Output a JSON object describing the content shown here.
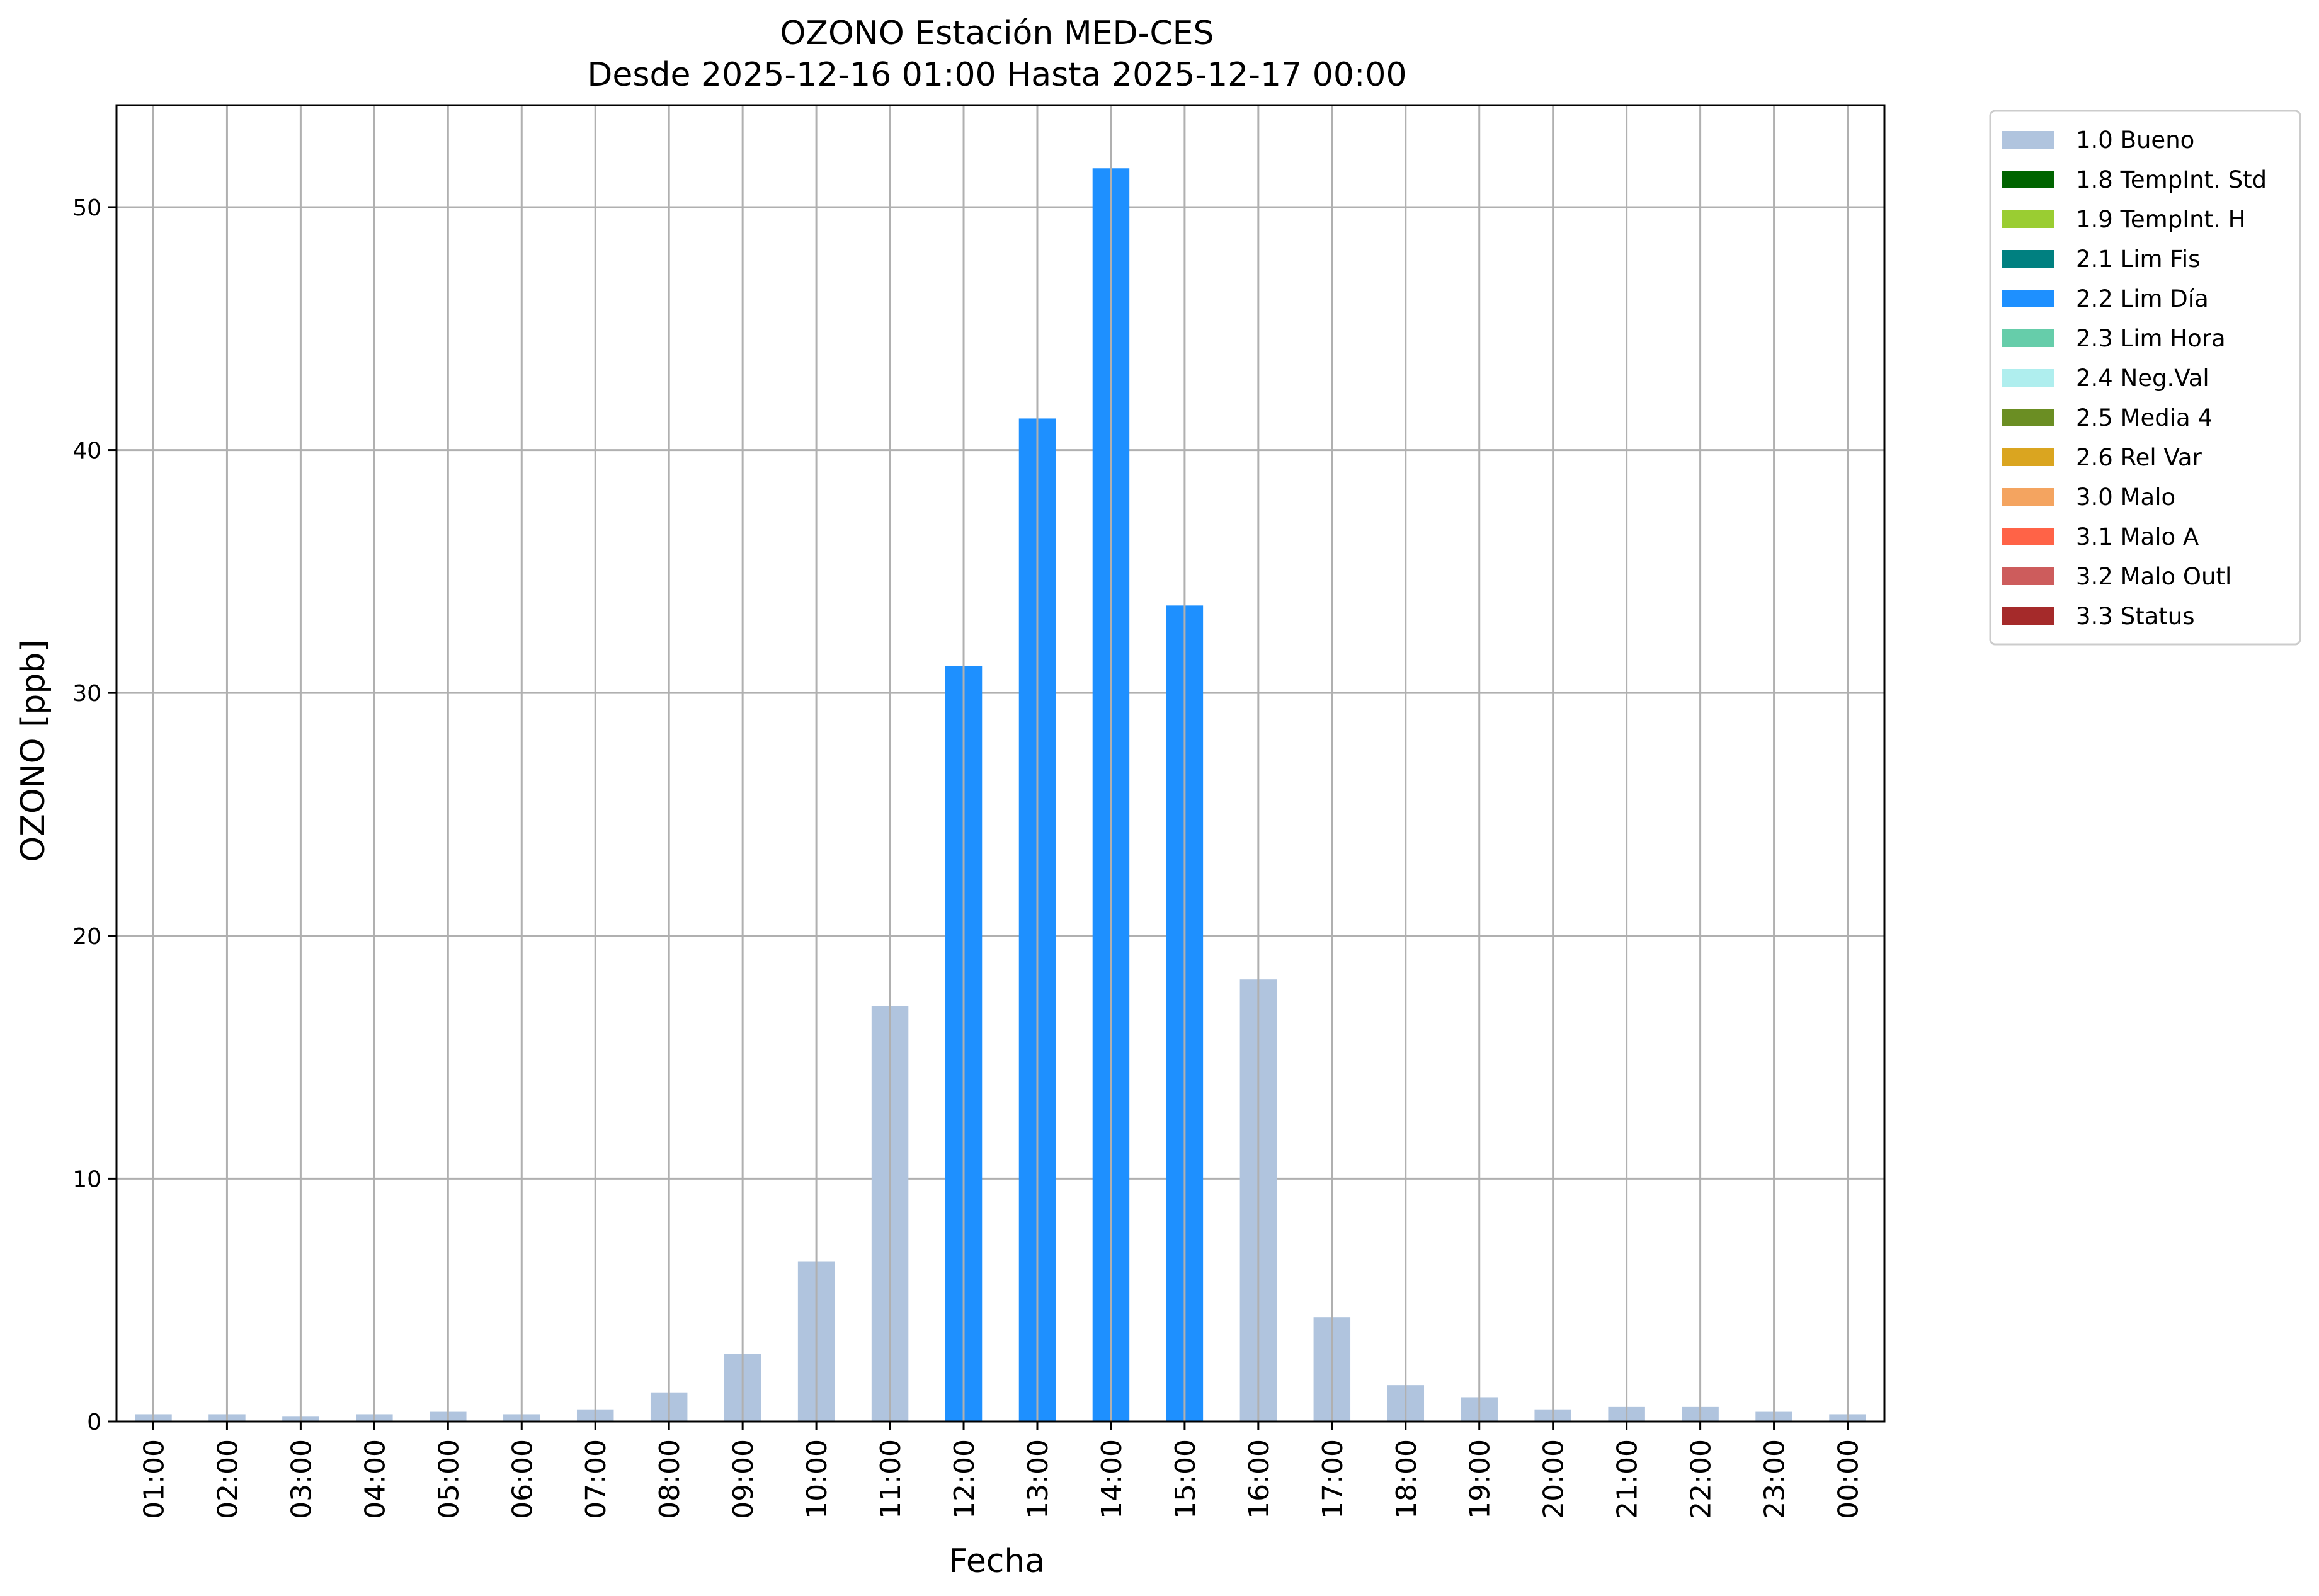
{
  "chart_data": {
    "type": "bar",
    "title": "OZONO Estación MED-CES",
    "subtitle": "Desde 2025-12-16 01:00 Hasta 2025-12-17 00:00",
    "xlabel": "Fecha",
    "ylabel": "OZONO [ppb]",
    "ylim": [
      0,
      54.2
    ],
    "yticks": [
      "0",
      "10",
      "20",
      "30",
      "40",
      "50"
    ],
    "grid": true,
    "legend_position": "outside-top-right",
    "categories": [
      "01:00",
      "02:00",
      "03:00",
      "04:00",
      "05:00",
      "06:00",
      "07:00",
      "08:00",
      "09:00",
      "10:00",
      "11:00",
      "12:00",
      "13:00",
      "14:00",
      "15:00",
      "16:00",
      "17:00",
      "18:00",
      "19:00",
      "20:00",
      "21:00",
      "22:00",
      "23:00",
      "00:00"
    ],
    "values": [
      0.3,
      0.3,
      0.2,
      0.3,
      0.4,
      0.3,
      0.5,
      1.2,
      2.8,
      6.6,
      17.1,
      31.1,
      41.3,
      51.6,
      33.6,
      18.2,
      4.3,
      1.5,
      1.0,
      0.5,
      0.6,
      0.6,
      0.4,
      0.3
    ],
    "flags": [
      "1.0 Bueno",
      "1.0 Bueno",
      "1.0 Bueno",
      "1.0 Bueno",
      "1.0 Bueno",
      "1.0 Bueno",
      "1.0 Bueno",
      "1.0 Bueno",
      "1.0 Bueno",
      "1.0 Bueno",
      "1.0 Bueno",
      "2.2 Lim Día",
      "2.2 Lim Día",
      "2.2 Lim Día",
      "2.2 Lim Día",
      "1.0 Bueno",
      "1.0 Bueno",
      "1.0 Bueno",
      "1.0 Bueno",
      "1.0 Bueno",
      "1.0 Bueno",
      "1.0 Bueno",
      "1.0 Bueno",
      "1.0 Bueno"
    ],
    "legend": [
      {
        "label": "1.0 Bueno",
        "color": "#b0c4de"
      },
      {
        "label": "1.8 TempInt. Std",
        "color": "#006400"
      },
      {
        "label": "1.9 TempInt. H",
        "color": "#9acd32"
      },
      {
        "label": "2.1 Lim Fis",
        "color": "#008080"
      },
      {
        "label": "2.2 Lim Día",
        "color": "#1e90ff"
      },
      {
        "label": "2.3 Lim Hora",
        "color": "#66cdaa"
      },
      {
        "label": "2.4 Neg.Val",
        "color": "#afeeee"
      },
      {
        "label": "2.5 Media 4",
        "color": "#6b8e23"
      },
      {
        "label": "2.6 Rel Var",
        "color": "#daa520"
      },
      {
        "label": "3.0 Malo",
        "color": "#f4a460"
      },
      {
        "label": "3.1 Malo A",
        "color": "#ff6347"
      },
      {
        "label": "3.2 Malo Outl",
        "color": "#cd5c5c"
      },
      {
        "label": "3.3 Status",
        "color": "#a52a2a"
      }
    ]
  }
}
